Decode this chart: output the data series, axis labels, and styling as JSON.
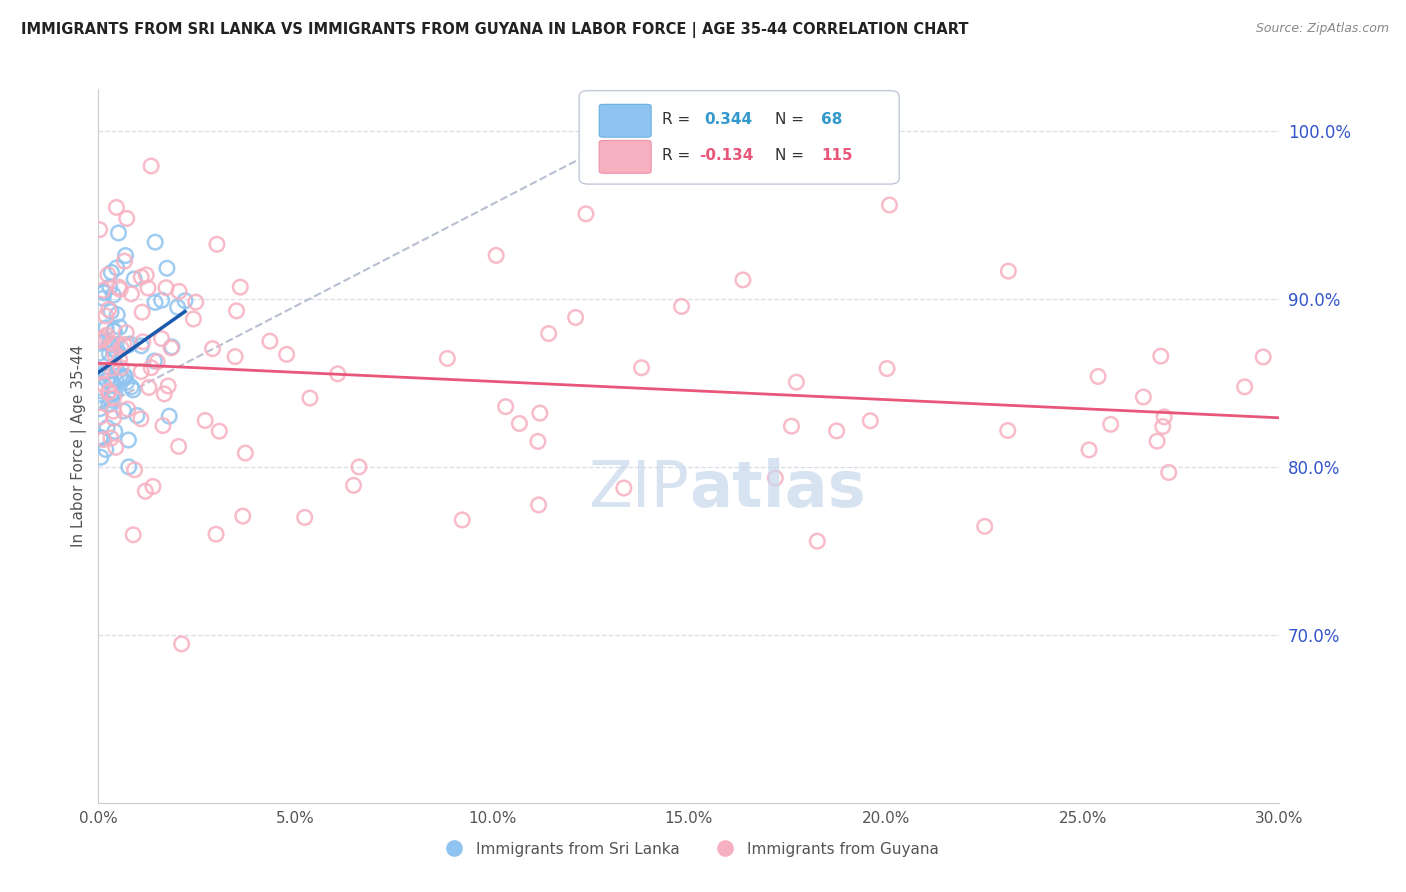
{
  "title": "IMMIGRANTS FROM SRI LANKA VS IMMIGRANTS FROM GUYANA IN LABOR FORCE | AGE 35-44 CORRELATION CHART",
  "source": "Source: ZipAtlas.com",
  "ylabel": "In Labor Force | Age 35-44",
  "xlim": [
    0.0,
    0.3
  ],
  "ylim": [
    0.6,
    1.025
  ],
  "right_yticks": [
    1.0,
    0.9,
    0.8,
    0.7
  ],
  "right_ytick_labels": [
    "100.0%",
    "90.0%",
    "80.0%",
    "70.0%"
  ],
  "xtick_labels": [
    "0.0%",
    "5.0%",
    "10.0%",
    "15.0%",
    "20.0%",
    "25.0%",
    "30.0%"
  ],
  "xtick_vals": [
    0.0,
    0.05,
    0.1,
    0.15,
    0.2,
    0.25,
    0.3
  ],
  "sri_lanka_color": "#90c4f0",
  "guyana_color": "#f7b0c0",
  "sri_lanka_edge_color": "#6aaee0",
  "guyana_edge_color": "#f090a8",
  "sri_lanka_line_color": "#1a5aad",
  "guyana_line_color": "#e8567a",
  "sri_lanka_R": 0.344,
  "sri_lanka_N": 68,
  "guyana_R": -0.134,
  "guyana_N": 115,
  "ref_line_color": "#b0b8cc",
  "watermark_color": "#c8d8ec",
  "grid_color": "#d8dde8",
  "legend_edge_color": "#c0c8d8"
}
